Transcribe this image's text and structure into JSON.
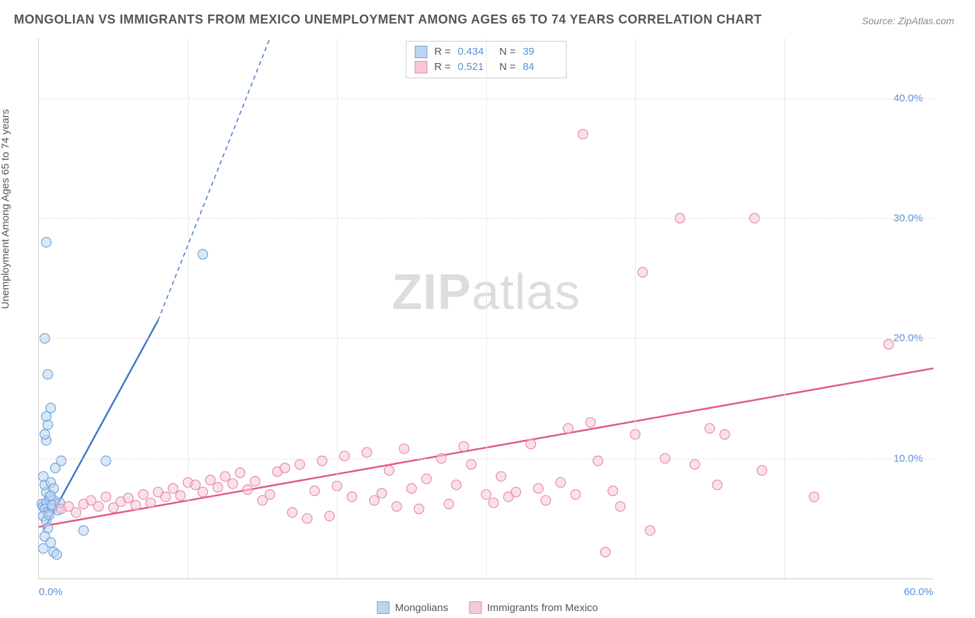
{
  "title": "MONGOLIAN VS IMMIGRANTS FROM MEXICO UNEMPLOYMENT AMONG AGES 65 TO 74 YEARS CORRELATION CHART",
  "source": "Source: ZipAtlas.com",
  "y_axis_label": "Unemployment Among Ages 65 to 74 years",
  "watermark_bold": "ZIP",
  "watermark_light": "atlas",
  "chart": {
    "type": "scatter",
    "background_color": "#ffffff",
    "grid_color": "#e0e0e0",
    "axis_color": "#cccccc",
    "tick_label_color": "#5b8fd6",
    "xlim": [
      0,
      60
    ],
    "ylim": [
      0,
      45
    ],
    "x_ticks": [
      0,
      60
    ],
    "y_ticks": [
      10,
      20,
      30,
      40
    ],
    "y_tick_labels": [
      "10.0%",
      "20.0%",
      "30.0%",
      "40.0%"
    ],
    "x_tick_labels": [
      "0.0%",
      "60.0%"
    ],
    "x_gridlines": [
      10,
      20,
      30,
      40,
      50
    ],
    "marker_radius": 7,
    "marker_opacity": 0.55,
    "label_fontsize": 15
  },
  "series": [
    {
      "name": "Mongolians",
      "key": "mongolians",
      "color": "#6fa3e0",
      "fill": "#bcd4ef",
      "line_color": "#3e78c9",
      "r": "0.434",
      "n": "39",
      "trend": {
        "x1": 0.3,
        "y1": 4.0,
        "x2": 8.0,
        "y2": 21.5,
        "dash_x2": 15.5,
        "dash_y2": 45.0
      },
      "points": [
        [
          0.2,
          6.2
        ],
        [
          0.3,
          6.0
        ],
        [
          0.5,
          6.3
        ],
        [
          0.4,
          5.8
        ],
        [
          0.6,
          5.5
        ],
        [
          0.3,
          5.2
        ],
        [
          0.7,
          6.8
        ],
        [
          0.5,
          7.2
        ],
        [
          0.4,
          7.8
        ],
        [
          0.8,
          8.0
        ],
        [
          0.3,
          8.5
        ],
        [
          0.5,
          4.8
        ],
        [
          0.6,
          4.2
        ],
        [
          0.4,
          3.5
        ],
        [
          0.8,
          3.0
        ],
        [
          1.0,
          2.2
        ],
        [
          1.2,
          2.0
        ],
        [
          0.3,
          2.5
        ],
        [
          0.9,
          5.9
        ],
        [
          1.0,
          6.5
        ],
        [
          1.1,
          9.2
        ],
        [
          1.5,
          9.8
        ],
        [
          0.5,
          11.5
        ],
        [
          0.4,
          12.0
        ],
        [
          0.6,
          12.8
        ],
        [
          0.5,
          13.5
        ],
        [
          0.8,
          14.2
        ],
        [
          4.5,
          9.8
        ],
        [
          3.0,
          4.0
        ],
        [
          0.6,
          17.0
        ],
        [
          0.4,
          20.0
        ],
        [
          0.5,
          28.0
        ],
        [
          11.0,
          27.0
        ],
        [
          0.9,
          6.1
        ],
        [
          1.3,
          5.7
        ],
        [
          0.7,
          5.3
        ],
        [
          1.0,
          7.5
        ],
        [
          0.8,
          6.9
        ],
        [
          1.4,
          6.3
        ]
      ]
    },
    {
      "name": "Immigrants from Mexico",
      "key": "mexico",
      "color": "#e88ba8",
      "fill": "#f6c8d6",
      "line_color": "#e05a87",
      "r": "0.521",
      "n": "84",
      "trend": {
        "x1": 0,
        "y1": 4.3,
        "x2": 60,
        "y2": 17.5
      },
      "points": [
        [
          1.5,
          5.8
        ],
        [
          2.0,
          6.0
        ],
        [
          2.5,
          5.5
        ],
        [
          3.0,
          6.2
        ],
        [
          3.5,
          6.5
        ],
        [
          4.0,
          6.0
        ],
        [
          4.5,
          6.8
        ],
        [
          5.0,
          5.9
        ],
        [
          5.5,
          6.4
        ],
        [
          6.0,
          6.7
        ],
        [
          6.5,
          6.1
        ],
        [
          7.0,
          7.0
        ],
        [
          7.5,
          6.3
        ],
        [
          8.0,
          7.2
        ],
        [
          8.5,
          6.8
        ],
        [
          9.0,
          7.5
        ],
        [
          9.5,
          6.9
        ],
        [
          10.0,
          8.0
        ],
        [
          10.5,
          7.8
        ],
        [
          11.0,
          7.2
        ],
        [
          11.5,
          8.2
        ],
        [
          12.0,
          7.6
        ],
        [
          12.5,
          8.5
        ],
        [
          13.0,
          7.9
        ],
        [
          13.5,
          8.8
        ],
        [
          14.0,
          7.4
        ],
        [
          14.5,
          8.1
        ],
        [
          15.0,
          6.5
        ],
        [
          15.5,
          7.0
        ],
        [
          16.0,
          8.9
        ],
        [
          16.5,
          9.2
        ],
        [
          17.0,
          5.5
        ],
        [
          17.5,
          9.5
        ],
        [
          18.0,
          5.0
        ],
        [
          18.5,
          7.3
        ],
        [
          19.0,
          9.8
        ],
        [
          19.5,
          5.2
        ],
        [
          20.0,
          7.7
        ],
        [
          20.5,
          10.2
        ],
        [
          21.0,
          6.8
        ],
        [
          22.0,
          10.5
        ],
        [
          22.5,
          6.5
        ],
        [
          23.0,
          7.1
        ],
        [
          23.5,
          9.0
        ],
        [
          24.0,
          6.0
        ],
        [
          24.5,
          10.8
        ],
        [
          25.0,
          7.5
        ],
        [
          25.5,
          5.8
        ],
        [
          26.0,
          8.3
        ],
        [
          27.0,
          10.0
        ],
        [
          27.5,
          6.2
        ],
        [
          28.0,
          7.8
        ],
        [
          28.5,
          11.0
        ],
        [
          29.0,
          9.5
        ],
        [
          30.0,
          7.0
        ],
        [
          30.5,
          6.3
        ],
        [
          31.0,
          8.5
        ],
        [
          31.5,
          6.8
        ],
        [
          32.0,
          7.2
        ],
        [
          33.0,
          11.2
        ],
        [
          33.5,
          7.5
        ],
        [
          34.0,
          6.5
        ],
        [
          35.0,
          8.0
        ],
        [
          35.5,
          12.5
        ],
        [
          36.0,
          7.0
        ],
        [
          37.0,
          13.0
        ],
        [
          37.5,
          9.8
        ],
        [
          38.0,
          2.2
        ],
        [
          38.5,
          7.3
        ],
        [
          39.0,
          6.0
        ],
        [
          40.0,
          12.0
        ],
        [
          41.0,
          4.0
        ],
        [
          42.0,
          10.0
        ],
        [
          43.0,
          30.0
        ],
        [
          44.0,
          9.5
        ],
        [
          45.0,
          12.5
        ],
        [
          45.5,
          7.8
        ],
        [
          46.0,
          12.0
        ],
        [
          48.0,
          30.0
        ],
        [
          36.5,
          37.0
        ],
        [
          40.5,
          25.5
        ],
        [
          52.0,
          6.8
        ],
        [
          48.5,
          9.0
        ],
        [
          57.0,
          19.5
        ]
      ]
    }
  ],
  "stats_box": {
    "r_label": "R =",
    "n_label": "N ="
  },
  "legend_labels": {
    "mongolians": "Mongolians",
    "mexico": "Immigrants from Mexico"
  }
}
